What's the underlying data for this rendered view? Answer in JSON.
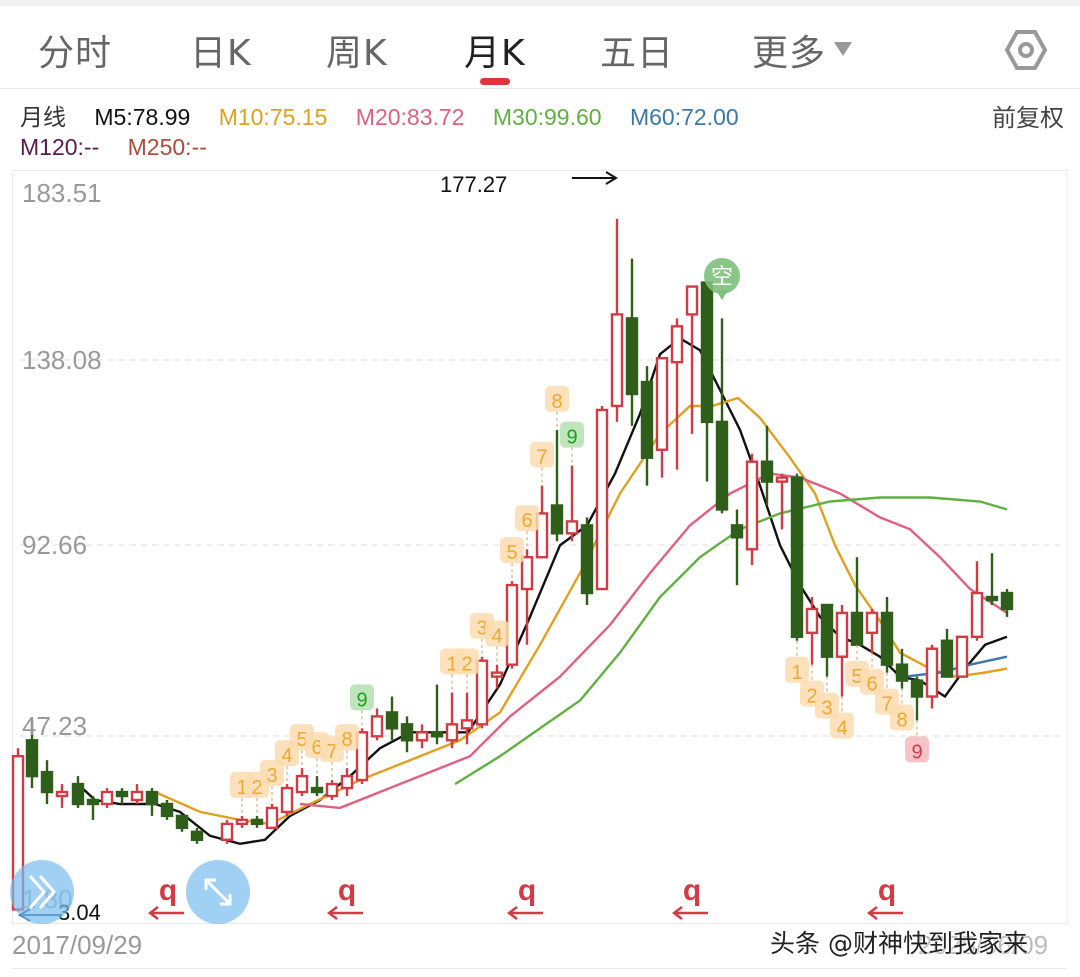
{
  "tabs": [
    {
      "label": "分时",
      "active": false
    },
    {
      "label": "日K",
      "active": false
    },
    {
      "label": "周K",
      "active": false
    },
    {
      "label": "月K",
      "active": true
    },
    {
      "label": "五日",
      "active": false
    },
    {
      "label": "更多",
      "active": false,
      "has_dropdown": true
    }
  ],
  "settings_icon": "hexagon-settings-icon",
  "ma_legend": {
    "period_label": "月线",
    "items": [
      {
        "label": "M5:78.99",
        "color": "#111111"
      },
      {
        "label": "M10:75.15",
        "color": "#e0a020"
      },
      {
        "label": "M20:83.72",
        "color": "#e06080"
      },
      {
        "label": "M30:99.60",
        "color": "#60b040"
      },
      {
        "label": "M60:72.00",
        "color": "#3a78a8"
      },
      {
        "label": "M120:--",
        "color": "#5a1a4a"
      },
      {
        "label": "M250:--",
        "color": "#b04a3a"
      }
    ],
    "adjust_label": "前复权"
  },
  "y_axis": {
    "ticks": [
      "183.51",
      "138.08",
      "92.66",
      "47.23",
      "1.80"
    ]
  },
  "x_axis": {
    "start_date": "2017/09/29",
    "end_date": "2025/06/09"
  },
  "annotations": {
    "high_label": "177.27",
    "low_label": "3.04",
    "sell_marker": "空"
  },
  "watermark": "头条 @财神快到我家来",
  "colors": {
    "up": "#d23a44",
    "down": "#2e5e1a",
    "ma5": "#111111",
    "ma10": "#e0a020",
    "ma20": "#e06080",
    "ma30": "#60b040",
    "ma60": "#3a78a8",
    "td_count": "#f0a830",
    "td_nine_green": "#1aa01a",
    "td_nine_red": "#d23a44"
  },
  "chart_data": {
    "type": "candlestick",
    "title": "月K",
    "xlabel": "",
    "ylabel": "",
    "ylim": [
      1.8,
      183.51
    ],
    "y_ticks": [
      183.51,
      138.08,
      92.66,
      47.23,
      1.8
    ],
    "grid": true,
    "high_marker": 177.27,
    "low_marker": 3.04,
    "candles": [
      {
        "x": 18,
        "o": 3.5,
        "h": 44,
        "l": 3.0,
        "c": 42,
        "up": true
      },
      {
        "x": 32,
        "o": 46,
        "h": 51,
        "l": 34,
        "c": 37,
        "up": false
      },
      {
        "x": 47,
        "o": 38,
        "h": 41,
        "l": 30,
        "c": 33,
        "up": false
      },
      {
        "x": 62,
        "o": 33,
        "h": 35,
        "l": 29,
        "c": 32,
        "up": true
      },
      {
        "x": 78,
        "o": 35,
        "h": 37,
        "l": 29,
        "c": 30,
        "up": false
      },
      {
        "x": 93,
        "o": 31,
        "h": 32,
        "l": 26,
        "c": 30,
        "up": false
      },
      {
        "x": 107,
        "o": 30,
        "h": 34,
        "l": 29,
        "c": 33,
        "up": true
      },
      {
        "x": 122,
        "o": 33,
        "h": 34,
        "l": 30,
        "c": 32,
        "up": false
      },
      {
        "x": 137,
        "o": 31,
        "h": 35,
        "l": 30,
        "c": 33,
        "up": true
      },
      {
        "x": 152,
        "o": 33,
        "h": 34,
        "l": 27,
        "c": 30,
        "up": false
      },
      {
        "x": 167,
        "o": 30,
        "h": 31,
        "l": 26,
        "c": 27,
        "up": false
      },
      {
        "x": 182,
        "o": 27,
        "h": 27,
        "l": 23,
        "c": 24,
        "up": false
      },
      {
        "x": 197,
        "o": 23,
        "h": 24,
        "l": 20,
        "c": 21,
        "up": false
      },
      {
        "x": 227,
        "o": 21,
        "h": 26,
        "l": 20,
        "c": 25,
        "up": true
      },
      {
        "x": 242,
        "o": 25,
        "h": 27,
        "l": 24,
        "c": 26,
        "up": true
      },
      {
        "x": 257,
        "o": 26,
        "h": 27,
        "l": 24,
        "c": 25,
        "up": false
      },
      {
        "x": 272,
        "o": 24,
        "h": 30,
        "l": 24,
        "c": 29,
        "up": true
      },
      {
        "x": 287,
        "o": 28,
        "h": 35,
        "l": 27,
        "c": 34,
        "up": true
      },
      {
        "x": 302,
        "o": 33,
        "h": 39,
        "l": 32,
        "c": 37,
        "up": true
      },
      {
        "x": 317,
        "o": 34,
        "h": 37,
        "l": 32,
        "c": 33,
        "up": false
      },
      {
        "x": 332,
        "o": 32,
        "h": 36,
        "l": 31,
        "c": 35,
        "up": true
      },
      {
        "x": 347,
        "o": 34,
        "h": 39,
        "l": 32,
        "c": 37,
        "up": true
      },
      {
        "x": 362,
        "o": 36,
        "h": 49,
        "l": 35,
        "c": 48,
        "up": true
      },
      {
        "x": 377,
        "o": 47,
        "h": 54,
        "l": 46,
        "c": 52,
        "up": true
      },
      {
        "x": 392,
        "o": 53,
        "h": 57,
        "l": 46,
        "c": 49,
        "up": false
      },
      {
        "x": 407,
        "o": 50,
        "h": 52,
        "l": 43,
        "c": 46,
        "up": false
      },
      {
        "x": 422,
        "o": 46,
        "h": 50,
        "l": 44,
        "c": 48,
        "up": true
      },
      {
        "x": 437,
        "o": 48,
        "h": 60,
        "l": 45,
        "c": 47,
        "up": false
      },
      {
        "x": 452,
        "o": 46,
        "h": 58,
        "l": 44,
        "c": 50,
        "up": true
      },
      {
        "x": 467,
        "o": 49,
        "h": 58,
        "l": 45,
        "c": 51,
        "up": true
      },
      {
        "x": 482,
        "o": 50,
        "h": 67,
        "l": 49,
        "c": 66,
        "up": true
      },
      {
        "x": 497,
        "o": 62,
        "h": 65,
        "l": 59,
        "c": 63,
        "up": true
      },
      {
        "x": 512,
        "o": 65,
        "h": 86,
        "l": 64,
        "c": 85,
        "up": true
      },
      {
        "x": 527,
        "o": 84,
        "h": 94,
        "l": 70,
        "c": 92,
        "up": true
      },
      {
        "x": 542,
        "o": 92,
        "h": 110,
        "l": 92,
        "c": 103,
        "up": true
      },
      {
        "x": 557,
        "o": 105,
        "h": 124,
        "l": 96,
        "c": 98,
        "up": false
      },
      {
        "x": 572,
        "o": 98,
        "h": 115,
        "l": 96,
        "c": 101,
        "up": true
      },
      {
        "x": 587,
        "o": 100,
        "h": 102,
        "l": 80,
        "c": 83,
        "up": false
      },
      {
        "x": 602,
        "o": 84,
        "h": 130,
        "l": 84,
        "c": 129,
        "up": true
      },
      {
        "x": 617,
        "o": 130,
        "h": 177,
        "l": 126,
        "c": 153,
        "up": true
      },
      {
        "x": 632,
        "o": 152,
        "h": 167,
        "l": 125,
        "c": 133,
        "up": false
      },
      {
        "x": 647,
        "o": 136,
        "h": 140,
        "l": 110,
        "c": 117,
        "up": false
      },
      {
        "x": 662,
        "o": 119,
        "h": 142,
        "l": 112,
        "c": 142,
        "up": true
      },
      {
        "x": 677,
        "o": 141,
        "h": 152,
        "l": 114,
        "c": 150,
        "up": true
      },
      {
        "x": 692,
        "o": 153,
        "h": 155,
        "l": 123,
        "c": 160,
        "up": true
      },
      {
        "x": 707,
        "o": 161,
        "h": 161,
        "l": 111,
        "c": 126,
        "up": false
      },
      {
        "x": 722,
        "o": 126,
        "h": 152,
        "l": 103,
        "c": 104,
        "up": false
      },
      {
        "x": 737,
        "o": 100,
        "h": 104,
        "l": 85,
        "c": 97,
        "up": false
      },
      {
        "x": 752,
        "o": 94,
        "h": 118,
        "l": 90,
        "c": 116,
        "up": true
      },
      {
        "x": 767,
        "o": 116,
        "h": 125,
        "l": 105,
        "c": 111,
        "up": false
      },
      {
        "x": 782,
        "o": 112,
        "h": 113,
        "l": 99,
        "c": 111,
        "up": true
      },
      {
        "x": 797,
        "o": 112,
        "h": 113,
        "l": 71,
        "c": 72,
        "up": false
      },
      {
        "x": 812,
        "o": 73,
        "h": 82,
        "l": 65,
        "c": 79,
        "up": true
      },
      {
        "x": 827,
        "o": 80,
        "h": 80,
        "l": 62,
        "c": 67,
        "up": false
      },
      {
        "x": 842,
        "o": 67,
        "h": 80,
        "l": 57,
        "c": 78,
        "up": true
      },
      {
        "x": 857,
        "o": 78,
        "h": 92,
        "l": 70,
        "c": 70,
        "up": false
      },
      {
        "x": 872,
        "o": 73,
        "h": 79,
        "l": 68,
        "c": 78,
        "up": true
      },
      {
        "x": 887,
        "o": 78,
        "h": 82,
        "l": 63,
        "c": 65,
        "up": false
      },
      {
        "x": 902,
        "o": 65,
        "h": 69,
        "l": 59,
        "c": 61,
        "up": false
      },
      {
        "x": 917,
        "o": 61,
        "h": 62,
        "l": 51,
        "c": 57,
        "up": false
      },
      {
        "x": 932,
        "o": 57,
        "h": 70,
        "l": 54,
        "c": 69,
        "up": true
      },
      {
        "x": 947,
        "o": 71,
        "h": 74,
        "l": 63,
        "c": 62,
        "up": false
      },
      {
        "x": 962,
        "o": 62,
        "h": 72,
        "l": 62,
        "c": 72,
        "up": true
      },
      {
        "x": 977,
        "o": 72,
        "h": 91,
        "l": 71,
        "c": 83,
        "up": true
      },
      {
        "x": 992,
        "o": 82,
        "h": 93,
        "l": 80,
        "c": 82,
        "up": false
      },
      {
        "x": 1007,
        "o": 83,
        "h": 84,
        "l": 77,
        "c": 79,
        "up": false
      }
    ],
    "series": [
      {
        "name": "M5",
        "color": "#111111",
        "points": [
          [
            78,
            35
          ],
          [
            95,
            31
          ],
          [
            120,
            30
          ],
          [
            155,
            30
          ],
          [
            180,
            28
          ],
          [
            210,
            22
          ],
          [
            240,
            20
          ],
          [
            265,
            21
          ],
          [
            290,
            27
          ],
          [
            320,
            31
          ],
          [
            350,
            37
          ],
          [
            380,
            44
          ],
          [
            410,
            48
          ],
          [
            440,
            48
          ],
          [
            468,
            48
          ],
          [
            500,
            60
          ],
          [
            530,
            77
          ],
          [
            560,
            95
          ],
          [
            587,
            100
          ],
          [
            615,
            113
          ],
          [
            640,
            128
          ],
          [
            660,
            143
          ],
          [
            680,
            147
          ],
          [
            700,
            144
          ],
          [
            720,
            134
          ],
          [
            740,
            124
          ],
          [
            760,
            110
          ],
          [
            780,
            95
          ],
          [
            800,
            85
          ],
          [
            820,
            77
          ],
          [
            840,
            72
          ],
          [
            860,
            70
          ],
          [
            880,
            67
          ],
          [
            900,
            62
          ],
          [
            920,
            61
          ],
          [
            945,
            57
          ],
          [
            965,
            64
          ],
          [
            985,
            70
          ],
          [
            1007,
            72
          ]
        ]
      },
      {
        "name": "M10",
        "color": "#e0a020",
        "points": [
          [
            155,
            33
          ],
          [
            200,
            28
          ],
          [
            240,
            26
          ],
          [
            270,
            25
          ],
          [
            310,
            30
          ],
          [
            360,
            36
          ],
          [
            410,
            41
          ],
          [
            460,
            46
          ],
          [
            500,
            53
          ],
          [
            540,
            70
          ],
          [
            580,
            88
          ],
          [
            620,
            108
          ],
          [
            660,
            123
          ],
          [
            690,
            130
          ],
          [
            712,
            130
          ],
          [
            738,
            132
          ],
          [
            760,
            127
          ],
          [
            790,
            117
          ],
          [
            815,
            108
          ],
          [
            835,
            95
          ],
          [
            855,
            85
          ],
          [
            880,
            76
          ],
          [
            900,
            68
          ],
          [
            930,
            64
          ],
          [
            955,
            62
          ],
          [
            985,
            63
          ],
          [
            1007,
            64
          ]
        ]
      },
      {
        "name": "M20",
        "color": "#e06080",
        "points": [
          [
            300,
            30
          ],
          [
            340,
            29
          ],
          [
            390,
            34
          ],
          [
            430,
            38
          ],
          [
            470,
            42
          ],
          [
            510,
            52
          ],
          [
            560,
            62
          ],
          [
            610,
            75
          ],
          [
            650,
            88
          ],
          [
            690,
            100
          ],
          [
            730,
            108
          ],
          [
            770,
            113
          ],
          [
            800,
            112
          ],
          [
            840,
            108
          ],
          [
            880,
            102
          ],
          [
            910,
            99
          ],
          [
            940,
            92
          ],
          [
            970,
            84
          ],
          [
            1007,
            78
          ]
        ]
      },
      {
        "name": "M30",
        "color": "#60b040",
        "points": [
          [
            455,
            35
          ],
          [
            500,
            42
          ],
          [
            540,
            49
          ],
          [
            580,
            56
          ],
          [
            620,
            68
          ],
          [
            660,
            82
          ],
          [
            700,
            92
          ],
          [
            740,
            99
          ],
          [
            780,
            103
          ],
          [
            830,
            106
          ],
          [
            880,
            107
          ],
          [
            930,
            107
          ],
          [
            980,
            106
          ],
          [
            1007,
            104
          ]
        ]
      },
      {
        "name": "M60",
        "color": "#3a78a8",
        "points": [
          [
            905,
            62
          ],
          [
            940,
            63
          ],
          [
            970,
            65
          ],
          [
            1007,
            67
          ]
        ]
      }
    ],
    "td_sequences": [
      {
        "labels": [
          "1",
          "2",
          "3",
          "4",
          "5",
          "6",
          "7",
          "8"
        ],
        "nine": "9",
        "nine_color": "green",
        "position": "above",
        "start_x": 242,
        "end_x": 362
      },
      {
        "labels": [
          "1",
          "2",
          "3",
          "4",
          "5",
          "6",
          "7",
          "8"
        ],
        "nine": "9",
        "nine_color": "green",
        "position": "above",
        "start_x": 452,
        "end_x": 572
      },
      {
        "labels": [
          "1",
          "2",
          "3",
          "4",
          "5",
          "6",
          "7",
          "8"
        ],
        "nine": "9",
        "nine_color": "red",
        "position": "below",
        "start_x": 797,
        "end_x": 917
      }
    ],
    "cycle_markers": {
      "label": "q",
      "arrow": "←",
      "x": [
        168,
        347,
        527,
        692,
        887
      ]
    }
  }
}
